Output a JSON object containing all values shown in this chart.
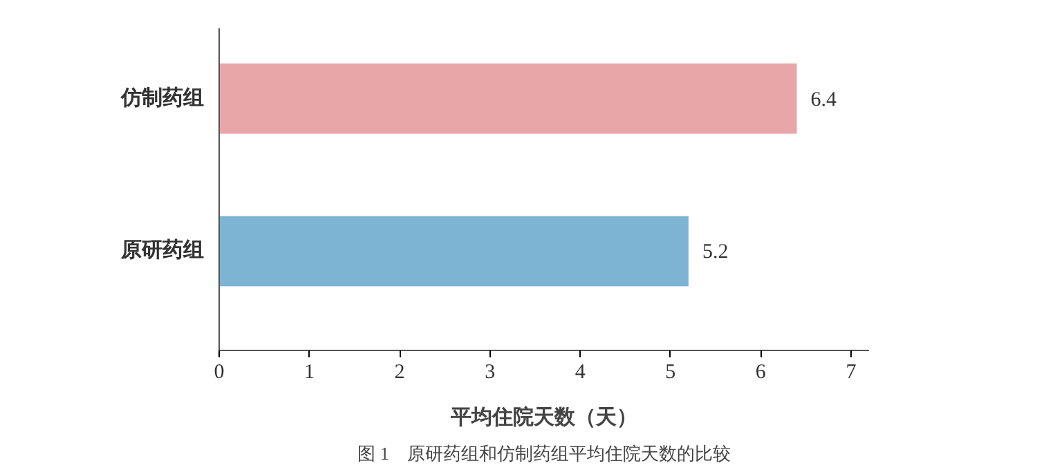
{
  "chart_data": {
    "type": "bar",
    "orientation": "horizontal",
    "categories": [
      "仿制药组",
      "原研药组"
    ],
    "values": [
      6.4,
      5.2
    ],
    "colors": [
      "#e8a6a9",
      "#7db4d4"
    ],
    "xlim": [
      0,
      7.2
    ],
    "xticks": [
      0,
      1,
      2,
      3,
      4,
      5,
      6,
      7
    ],
    "xlabel": "平均住院天数（天）",
    "annotations": [
      "图 1　原研药组和仿制药组平均住院天数的比较"
    ],
    "data_labels": true,
    "grid": false
  }
}
